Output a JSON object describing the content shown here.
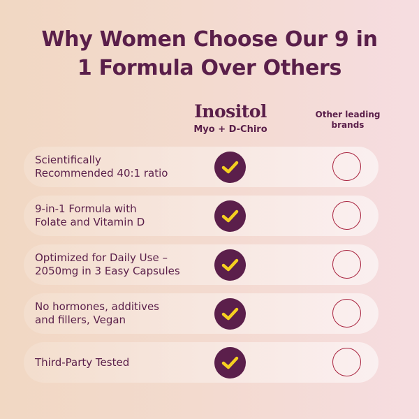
{
  "title_line1": "Why Women Choose Our 9 in",
  "title_line2": "1 Formula Over Others",
  "brand": {
    "name": "Inositol",
    "subtitle": "Myo + D-Chiro"
  },
  "competitor": {
    "line1": "Other leading",
    "line2": "brands"
  },
  "colors": {
    "primary": "#5b1f4b",
    "check": "#f5d020",
    "empty_circle": "#a8233f"
  },
  "icons": {
    "ours": "check-circle-icon",
    "others": "empty-circle-icon"
  },
  "rows": [
    {
      "line1": "Scientifically",
      "line2": "Recommended 40:1 ratio"
    },
    {
      "line1": "9-in-1 Formula with",
      "line2": "Folate and Vitamin D"
    },
    {
      "line1": "Optimized for Daily Use –",
      "line2": "2050mg in 3 Easy Capsules"
    },
    {
      "line1": "No hormones, additives",
      "line2": "and fillers, Vegan"
    },
    {
      "line1": "Third-Party Tested",
      "line2": ""
    }
  ]
}
